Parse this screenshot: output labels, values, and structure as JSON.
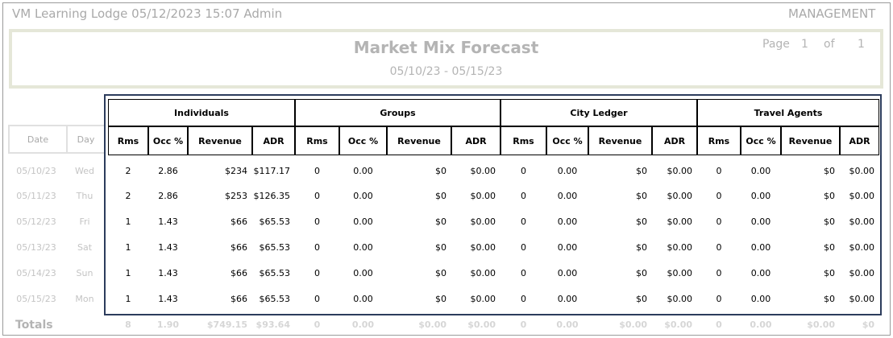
{
  "header": {
    "left_text": "VM Learning Lodge 05/12/2023 15:07 Admin",
    "right_text": "MANAGEMENT"
  },
  "report": {
    "title": "Market Mix Forecast",
    "date_range": "05/10/23 - 05/15/23",
    "page_label": "Page",
    "page_number": "1",
    "of_label": "of",
    "page_total": "1"
  },
  "left_columns": {
    "date": "Date",
    "day": "Day"
  },
  "groups": [
    "Individuals",
    "Groups",
    "City Ledger",
    "Travel Agents"
  ],
  "sub_columns": [
    "Rms",
    "Occ %",
    "Revenue",
    "ADR"
  ],
  "rows": [
    {
      "date": "05/10/23",
      "day": "Wed",
      "values": [
        "2",
        "2.86",
        "$234",
        "$117.17",
        "0",
        "0.00",
        "$0",
        "$0.00",
        "0",
        "0.00",
        "$0",
        "$0.00",
        "0",
        "0.00",
        "$0",
        "$0.00"
      ]
    },
    {
      "date": "05/11/23",
      "day": "Thu",
      "values": [
        "2",
        "2.86",
        "$253",
        "$126.35",
        "0",
        "0.00",
        "$0",
        "$0.00",
        "0",
        "0.00",
        "$0",
        "$0.00",
        "0",
        "0.00",
        "$0",
        "$0.00"
      ]
    },
    {
      "date": "05/12/23",
      "day": "Fri",
      "values": [
        "1",
        "1.43",
        "$66",
        "$65.53",
        "0",
        "0.00",
        "$0",
        "$0.00",
        "0",
        "0.00",
        "$0",
        "$0.00",
        "0",
        "0.00",
        "$0",
        "$0.00"
      ]
    },
    {
      "date": "05/13/23",
      "day": "Sat",
      "values": [
        "1",
        "1.43",
        "$66",
        "$65.53",
        "0",
        "0.00",
        "$0",
        "$0.00",
        "0",
        "0.00",
        "$0",
        "$0.00",
        "0",
        "0.00",
        "$0",
        "$0.00"
      ]
    },
    {
      "date": "05/14/23",
      "day": "Sun",
      "values": [
        "1",
        "1.43",
        "$66",
        "$65.53",
        "0",
        "0.00",
        "$0",
        "$0.00",
        "0",
        "0.00",
        "$0",
        "$0.00",
        "0",
        "0.00",
        "$0",
        "$0.00"
      ]
    },
    {
      "date": "05/15/23",
      "day": "Mon",
      "values": [
        "1",
        "1.43",
        "$66",
        "$65.53",
        "0",
        "0.00",
        "$0",
        "$0.00",
        "0",
        "0.00",
        "$0",
        "$0.00",
        "0",
        "0.00",
        "$0",
        "$0.00"
      ]
    }
  ],
  "totals": {
    "label": "Totals",
    "values": [
      "8",
      "1.90",
      "$749.15",
      "$93.64",
      "0",
      "0.00",
      "$0.00",
      "$0.00",
      "0",
      "0.00",
      "$0.00",
      "$0.00",
      "0",
      "0.00",
      "$0.00",
      "$0"
    ]
  }
}
